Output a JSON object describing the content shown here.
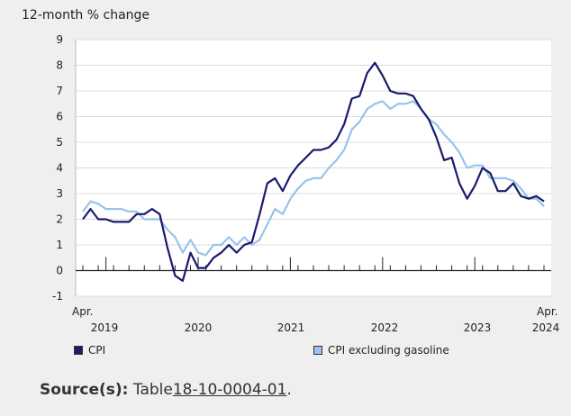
{
  "colors": {
    "cpi": "#1a1a6e",
    "cpi_ex_gas": "#9ac3ea",
    "background": "#efefef",
    "plot_bg": "#ffffff"
  },
  "chart_data": {
    "type": "line",
    "title": "",
    "ylabel": "12-month % change",
    "ylim": [
      -1,
      9
    ],
    "yticks": [
      "-1",
      "0",
      "1",
      "2",
      "3",
      "4",
      "5",
      "6",
      "7",
      "8",
      "9"
    ],
    "x_start": "2019-04",
    "x_end": "2024-04",
    "x_tick_labels": [
      {
        "top": "Apr.",
        "bottom": "2019"
      },
      {
        "top": "",
        "bottom": "2020"
      },
      {
        "top": "",
        "bottom": "2021"
      },
      {
        "top": "",
        "bottom": "2022"
      },
      {
        "top": "",
        "bottom": "2023"
      },
      {
        "top": "Apr.",
        "bottom": "2024"
      }
    ],
    "grid": true,
    "legend_position": "bottom",
    "series": [
      {
        "name": "CPI",
        "values": [
          2.0,
          2.4,
          2.0,
          2.0,
          1.9,
          1.9,
          1.9,
          2.2,
          2.2,
          2.4,
          2.2,
          0.9,
          -0.2,
          -0.4,
          0.7,
          0.1,
          0.1,
          0.5,
          0.7,
          1.0,
          0.7,
          1.0,
          1.1,
          2.2,
          3.4,
          3.6,
          3.1,
          3.7,
          4.1,
          4.4,
          4.7,
          4.7,
          4.8,
          5.1,
          5.7,
          6.7,
          6.8,
          7.7,
          8.1,
          7.6,
          7.0,
          6.9,
          6.9,
          6.8,
          6.3,
          5.9,
          5.2,
          4.3,
          4.4,
          3.4,
          2.8,
          3.3,
          4.0,
          3.8,
          3.1,
          3.1,
          3.4,
          2.9,
          2.8,
          2.9,
          2.7
        ]
      },
      {
        "name": "CPI excluding gasoline",
        "values": [
          2.3,
          2.7,
          2.6,
          2.4,
          2.4,
          2.4,
          2.3,
          2.3,
          2.0,
          2.0,
          2.0,
          1.6,
          1.3,
          0.7,
          1.2,
          0.7,
          0.6,
          1.0,
          1.0,
          1.3,
          1.0,
          1.3,
          1.0,
          1.2,
          1.8,
          2.4,
          2.2,
          2.8,
          3.2,
          3.5,
          3.6,
          3.6,
          4.0,
          4.3,
          4.7,
          5.5,
          5.8,
          6.3,
          6.5,
          6.6,
          6.3,
          6.5,
          6.5,
          6.6,
          6.3,
          5.9,
          5.7,
          5.3,
          5.0,
          4.6,
          4.0,
          4.1,
          4.1,
          3.6,
          3.6,
          3.6,
          3.5,
          3.2,
          2.8,
          2.8,
          2.5
        ]
      }
    ]
  },
  "source": {
    "label": "Source(s):",
    "text": "Table",
    "link": "18-10-0004-01",
    "suffix": "."
  }
}
